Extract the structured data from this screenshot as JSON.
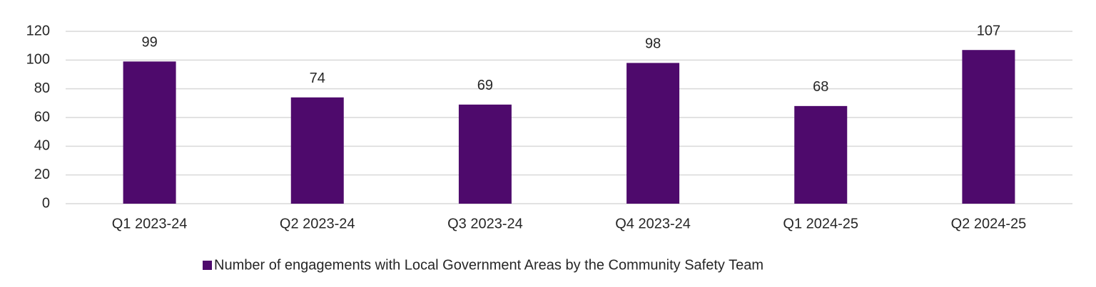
{
  "chart_data": {
    "type": "bar",
    "categories": [
      "Q1 2023-24",
      "Q2 2023-24",
      "Q3 2023-24",
      "Q4 2023-24",
      "Q1 2024-25",
      "Q2 2024-25"
    ],
    "series": [
      {
        "name": "Number of engagements with Local Government Areas by the Community Safety Team",
        "color": "#4e0a6c",
        "values": [
          99,
          74,
          69,
          98,
          68,
          107
        ]
      }
    ],
    "ylim": [
      0,
      120
    ],
    "yticks": [
      0,
      20,
      40,
      60,
      80,
      100,
      120
    ],
    "grid": true,
    "legend": "bottom"
  }
}
